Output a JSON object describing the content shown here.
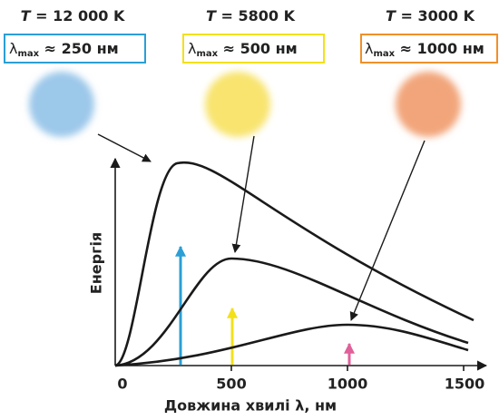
{
  "labels": [
    {
      "symbol": "T",
      "text": "= 12 000 K",
      "lambda": "λ",
      "sub": "max",
      "peak": "≈ 250 нм"
    },
    {
      "symbol": "T",
      "text": "= 5800 K",
      "lambda": "λ",
      "sub": "max",
      "peak": "≈ 500 нм"
    },
    {
      "symbol": "T",
      "text": "= 3000 K",
      "lambda": "λ",
      "sub": "max",
      "peak": "≈ 1000 нм"
    }
  ],
  "y_axis": "Енергія",
  "x_axis": "Довжина хвилі λ, нм",
  "x_ticks": [
    "0",
    "500",
    "1000",
    "1500"
  ]
}
